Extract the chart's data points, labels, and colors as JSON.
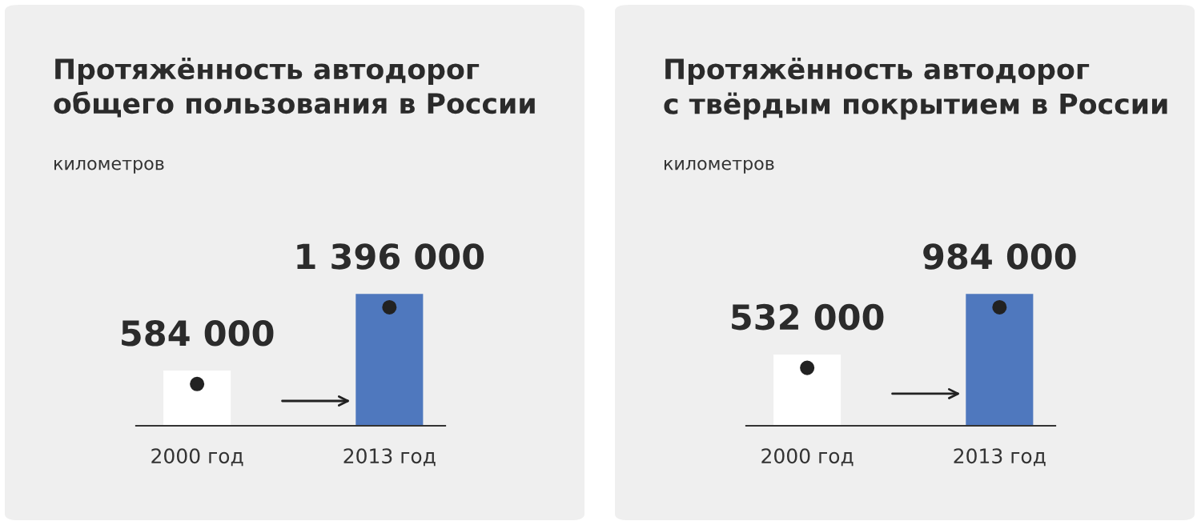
{
  "chart_data": [
    {
      "type": "bar",
      "title": "Протяжённость автодорог\nобщего пользования в России",
      "subtitle": "километров",
      "categories": [
        "2000 год",
        "2013 год"
      ],
      "values": [
        584000,
        1396000
      ],
      "colors": [
        "#ffffff",
        "#4f78be"
      ],
      "value_labels": [
        "584 000",
        "1 396 000"
      ],
      "grid": false,
      "legend": false
    },
    {
      "type": "bar",
      "title": "Протяжённость автодорог\nс твёрдым покрытием в России",
      "subtitle": "километров",
      "categories": [
        "2000 год",
        "2013 год"
      ],
      "values": [
        532000,
        984000
      ],
      "colors": [
        "#ffffff",
        "#4f78be"
      ],
      "value_labels": [
        "532 000",
        "984 000"
      ],
      "grid": false,
      "legend": false
    }
  ]
}
